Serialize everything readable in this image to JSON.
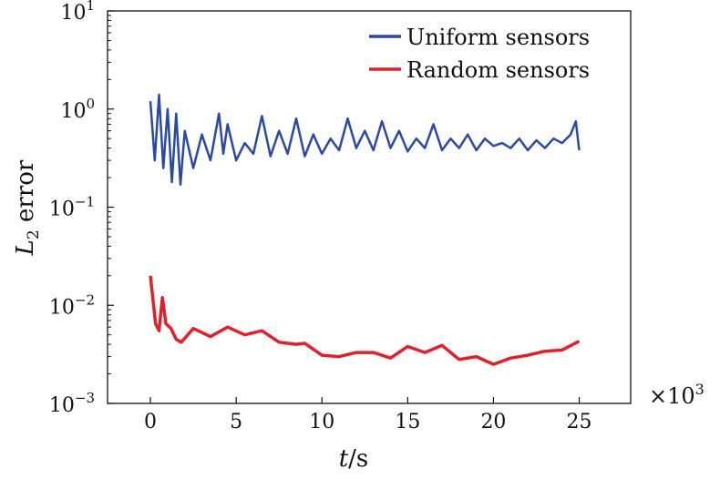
{
  "chart_data": {
    "type": "line",
    "title": "",
    "xlabel_italic": "t",
    "xlabel_rest": "/s",
    "ylabel_italic": "L",
    "ylabel_sub": "2",
    "ylabel_rest": " error",
    "x_multiplier": "×10",
    "x_multiplier_exp": "3",
    "xlim": [
      -2.5,
      28
    ],
    "ylim": [
      0.001,
      10
    ],
    "yscale": "log",
    "xticks": [
      "0",
      "5",
      "10",
      "15",
      "20",
      "25"
    ],
    "xtick_values": [
      0,
      5,
      10,
      15,
      20,
      25
    ],
    "yticks": [
      {
        "base": "10",
        "exp": "1",
        "value": 10
      },
      {
        "base": "10",
        "exp": "0",
        "value": 1
      },
      {
        "base": "10",
        "exp": "−1",
        "value": 0.1
      },
      {
        "base": "10",
        "exp": "−2",
        "value": 0.01
      },
      {
        "base": "10",
        "exp": "−3",
        "value": 0.001
      }
    ],
    "legend_position": "top-right",
    "series": [
      {
        "name": "Uniform sensors",
        "color": "#2b4aa8",
        "x": [
          0,
          0.25,
          0.5,
          0.75,
          1,
          1.25,
          1.5,
          1.75,
          2,
          2.5,
          3,
          3.5,
          4,
          4.25,
          4.5,
          5,
          5.5,
          6,
          6.5,
          7,
          7.5,
          8,
          8.5,
          9,
          9.5,
          10,
          10.5,
          11,
          11.5,
          12,
          12.5,
          13,
          13.5,
          14,
          14.5,
          15,
          15.5,
          16,
          16.5,
          17,
          17.5,
          18,
          18.5,
          19,
          19.5,
          20,
          20.5,
          21,
          21.5,
          22,
          22.5,
          23,
          23.5,
          24,
          24.5,
          24.8,
          25
        ],
        "y": [
          1.2,
          0.3,
          1.4,
          0.25,
          1.0,
          0.18,
          0.9,
          0.17,
          0.6,
          0.25,
          0.55,
          0.3,
          0.9,
          0.35,
          0.7,
          0.3,
          0.45,
          0.35,
          0.85,
          0.33,
          0.6,
          0.35,
          0.8,
          0.33,
          0.55,
          0.35,
          0.5,
          0.38,
          0.8,
          0.4,
          0.6,
          0.38,
          0.75,
          0.4,
          0.6,
          0.37,
          0.5,
          0.4,
          0.7,
          0.38,
          0.5,
          0.4,
          0.55,
          0.38,
          0.5,
          0.42,
          0.45,
          0.4,
          0.5,
          0.38,
          0.48,
          0.4,
          0.5,
          0.45,
          0.55,
          0.75,
          0.38
        ]
      },
      {
        "name": "Random sensors",
        "color": "#e0202a",
        "x": [
          0,
          0.3,
          0.5,
          0.7,
          0.9,
          1.2,
          1.5,
          1.8,
          2.5,
          3.5,
          4.5,
          5.5,
          6.5,
          7.5,
          8.5,
          9,
          10,
          11,
          12,
          13,
          14,
          15,
          16,
          17,
          18,
          19,
          20,
          21,
          22,
          23,
          24,
          25
        ],
        "y": [
          0.02,
          0.0065,
          0.0055,
          0.012,
          0.0065,
          0.0058,
          0.0045,
          0.0042,
          0.0058,
          0.0048,
          0.006,
          0.005,
          0.0055,
          0.0042,
          0.004,
          0.0041,
          0.0031,
          0.003,
          0.0033,
          0.0033,
          0.0029,
          0.0038,
          0.0033,
          0.0039,
          0.0028,
          0.003,
          0.0025,
          0.0029,
          0.0031,
          0.0034,
          0.0035,
          0.0043
        ]
      }
    ]
  }
}
